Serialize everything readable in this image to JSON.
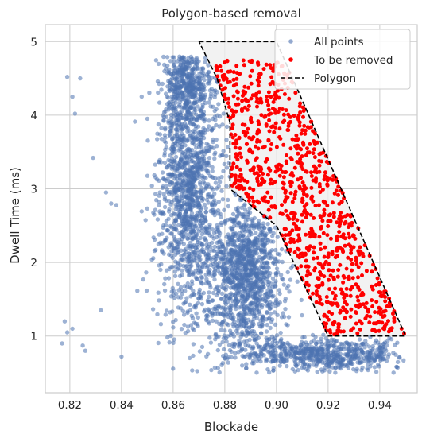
{
  "chart_data": {
    "type": "scatter",
    "title": "Polygon-based removal",
    "xlabel": "Blockade",
    "ylabel": "Dwell Time (ms)",
    "xlim": [
      0.8105,
      0.9545
    ],
    "ylim": [
      0.23,
      5.23
    ],
    "xticks": [
      0.82,
      0.84,
      0.86,
      0.88,
      0.9,
      0.92,
      0.94
    ],
    "xtick_labels": [
      "0.82",
      "0.84",
      "0.86",
      "0.88",
      "0.90",
      "0.92",
      "0.94"
    ],
    "yticks": [
      1,
      2,
      3,
      4,
      5
    ],
    "ytick_labels": [
      "1",
      "2",
      "3",
      "4",
      "5"
    ],
    "grid": true,
    "legend_position": "top-right",
    "colors": {
      "all_points": "#4c72b0",
      "removed": "#ff0000",
      "polygon": "#000000",
      "polygon_fill": "#ededed",
      "grid": "#cccccc"
    },
    "polygon": {
      "name": "Polygon",
      "x": [
        0.87,
        0.9,
        0.95,
        0.92,
        0.9,
        0.882,
        0.882,
        0.877,
        0.87
      ],
      "y": [
        5.0,
        5.0,
        1.0,
        1.0,
        2.5,
        3.0,
        3.9,
        4.5,
        5.0
      ]
    },
    "series": [
      {
        "name": "All points",
        "marker": "circle",
        "description_clusters": [
          {
            "x_center": 0.866,
            "y_center": 3.1,
            "x_sd": 0.006,
            "y_sd": 0.95,
            "n": 1500
          },
          {
            "x_center": 0.888,
            "y_center": 1.85,
            "x_sd": 0.007,
            "y_sd": 0.55,
            "n": 1300
          },
          {
            "x_center": 0.92,
            "y_center": 0.75,
            "x_sd": 0.016,
            "y_sd": 0.12,
            "n": 650
          },
          {
            "x_center": 0.865,
            "y_center": 4.45,
            "x_sd": 0.004,
            "y_sd": 0.2,
            "n": 300
          }
        ],
        "outliers": {
          "x": [
            0.819,
            0.818,
            0.821,
            0.822,
            0.824,
            0.817,
            0.819,
            0.821,
            0.825,
            0.829,
            0.836,
            0.838,
            0.834,
            0.826,
            0.832,
            0.84
          ],
          "y": [
            4.52,
            1.2,
            4.25,
            4.02,
            4.5,
            0.9,
            1.05,
            1.1,
            0.87,
            3.42,
            2.8,
            2.78,
            2.95,
            0.8,
            1.35,
            0.72
          ]
        }
      },
      {
        "name": "To be removed",
        "marker": "circle",
        "region": "points inside polygon",
        "n": 900
      },
      {
        "name": "Polygon",
        "marker": "dashed-line"
      }
    ]
  },
  "legend": {
    "items": [
      {
        "label": "All points"
      },
      {
        "label": "To be removed"
      },
      {
        "label": "Polygon"
      }
    ]
  }
}
